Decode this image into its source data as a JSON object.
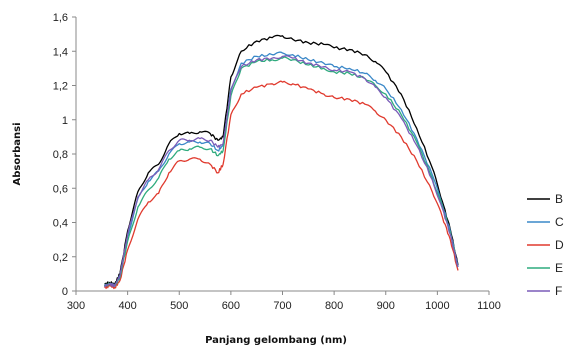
{
  "chart_data": {
    "type": "line",
    "title": "",
    "xlabel": "Panjang gelombang (nm)",
    "ylabel": "Absorbansi",
    "xlim": [
      300,
      1100
    ],
    "ylim": [
      0,
      1.6
    ],
    "x_ticks": [
      "300",
      "400",
      "500",
      "600",
      "700",
      "800",
      "900",
      "1000",
      "1100"
    ],
    "y_ticks": [
      "0",
      "0,2",
      "0,4",
      "0,6",
      "0,8",
      "1",
      "1,2",
      "1,4",
      "1,6"
    ],
    "grid": false,
    "legend_position": "right",
    "series": [
      {
        "name": "B",
        "color": "#000000",
        "points": [
          [
            355,
            0.04
          ],
          [
            365,
            0.05
          ],
          [
            375,
            0.04
          ],
          [
            385,
            0.1
          ],
          [
            400,
            0.35
          ],
          [
            420,
            0.58
          ],
          [
            440,
            0.69
          ],
          [
            460,
            0.74
          ],
          [
            480,
            0.86
          ],
          [
            500,
            0.92
          ],
          [
            520,
            0.92
          ],
          [
            540,
            0.93
          ],
          [
            560,
            0.92
          ],
          [
            575,
            0.88
          ],
          [
            585,
            0.9
          ],
          [
            600,
            1.25
          ],
          [
            620,
            1.4
          ],
          [
            650,
            1.46
          ],
          [
            680,
            1.48
          ],
          [
            700,
            1.49
          ],
          [
            720,
            1.47
          ],
          [
            750,
            1.45
          ],
          [
            780,
            1.44
          ],
          [
            800,
            1.42
          ],
          [
            830,
            1.41
          ],
          [
            860,
            1.38
          ],
          [
            880,
            1.34
          ],
          [
            900,
            1.28
          ],
          [
            930,
            1.15
          ],
          [
            960,
            0.95
          ],
          [
            990,
            0.72
          ],
          [
            1010,
            0.52
          ],
          [
            1025,
            0.36
          ],
          [
            1040,
            0.15
          ]
        ]
      },
      {
        "name": "C",
        "color": "#3a88c8",
        "points": [
          [
            355,
            0.03
          ],
          [
            365,
            0.04
          ],
          [
            375,
            0.03
          ],
          [
            385,
            0.09
          ],
          [
            400,
            0.32
          ],
          [
            420,
            0.54
          ],
          [
            440,
            0.64
          ],
          [
            460,
            0.7
          ],
          [
            480,
            0.8
          ],
          [
            500,
            0.86
          ],
          [
            520,
            0.87
          ],
          [
            540,
            0.87
          ],
          [
            560,
            0.86
          ],
          [
            575,
            0.82
          ],
          [
            585,
            0.85
          ],
          [
            600,
            1.18
          ],
          [
            620,
            1.33
          ],
          [
            650,
            1.37
          ],
          [
            680,
            1.38
          ],
          [
            700,
            1.39
          ],
          [
            720,
            1.38
          ],
          [
            750,
            1.35
          ],
          [
            780,
            1.33
          ],
          [
            800,
            1.31
          ],
          [
            830,
            1.3
          ],
          [
            860,
            1.27
          ],
          [
            880,
            1.23
          ],
          [
            900,
            1.18
          ],
          [
            930,
            1.06
          ],
          [
            960,
            0.89
          ],
          [
            990,
            0.68
          ],
          [
            1010,
            0.5
          ],
          [
            1025,
            0.35
          ],
          [
            1040,
            0.14
          ]
        ]
      },
      {
        "name": "D",
        "color": "#e03a2e",
        "points": [
          [
            355,
            0.02
          ],
          [
            365,
            0.03
          ],
          [
            375,
            0.02
          ],
          [
            385,
            0.06
          ],
          [
            400,
            0.24
          ],
          [
            420,
            0.42
          ],
          [
            440,
            0.52
          ],
          [
            460,
            0.57
          ],
          [
            480,
            0.69
          ],
          [
            500,
            0.76
          ],
          [
            520,
            0.77
          ],
          [
            540,
            0.77
          ],
          [
            560,
            0.74
          ],
          [
            575,
            0.69
          ],
          [
            585,
            0.74
          ],
          [
            600,
            1.03
          ],
          [
            620,
            1.15
          ],
          [
            650,
            1.19
          ],
          [
            680,
            1.21
          ],
          [
            700,
            1.22
          ],
          [
            720,
            1.21
          ],
          [
            750,
            1.18
          ],
          [
            780,
            1.15
          ],
          [
            800,
            1.13
          ],
          [
            830,
            1.12
          ],
          [
            860,
            1.09
          ],
          [
            880,
            1.05
          ],
          [
            900,
            1.0
          ],
          [
            930,
            0.9
          ],
          [
            960,
            0.76
          ],
          [
            990,
            0.58
          ],
          [
            1010,
            0.43
          ],
          [
            1025,
            0.3
          ],
          [
            1040,
            0.12
          ]
        ]
      },
      {
        "name": "E",
        "color": "#2fab7e",
        "points": [
          [
            355,
            0.03
          ],
          [
            365,
            0.04
          ],
          [
            375,
            0.03
          ],
          [
            385,
            0.08
          ],
          [
            400,
            0.29
          ],
          [
            420,
            0.49
          ],
          [
            440,
            0.59
          ],
          [
            460,
            0.66
          ],
          [
            480,
            0.77
          ],
          [
            500,
            0.82
          ],
          [
            520,
            0.83
          ],
          [
            540,
            0.84
          ],
          [
            560,
            0.83
          ],
          [
            575,
            0.79
          ],
          [
            585,
            0.82
          ],
          [
            600,
            1.14
          ],
          [
            620,
            1.3
          ],
          [
            650,
            1.34
          ],
          [
            680,
            1.35
          ],
          [
            700,
            1.36
          ],
          [
            720,
            1.35
          ],
          [
            750,
            1.32
          ],
          [
            780,
            1.3
          ],
          [
            800,
            1.28
          ],
          [
            830,
            1.27
          ],
          [
            860,
            1.24
          ],
          [
            880,
            1.2
          ],
          [
            900,
            1.15
          ],
          [
            930,
            1.03
          ],
          [
            960,
            0.87
          ],
          [
            990,
            0.66
          ],
          [
            1010,
            0.49
          ],
          [
            1025,
            0.34
          ],
          [
            1040,
            0.14
          ]
        ]
      },
      {
        "name": "F",
        "color": "#7a5cb8",
        "points": [
          [
            355,
            0.03
          ],
          [
            365,
            0.04
          ],
          [
            375,
            0.03
          ],
          [
            385,
            0.09
          ],
          [
            400,
            0.33
          ],
          [
            420,
            0.55
          ],
          [
            440,
            0.65
          ],
          [
            460,
            0.71
          ],
          [
            480,
            0.82
          ],
          [
            500,
            0.88
          ],
          [
            520,
            0.88
          ],
          [
            540,
            0.89
          ],
          [
            560,
            0.88
          ],
          [
            575,
            0.84
          ],
          [
            585,
            0.86
          ],
          [
            600,
            1.17
          ],
          [
            620,
            1.31
          ],
          [
            650,
            1.35
          ],
          [
            680,
            1.36
          ],
          [
            700,
            1.37
          ],
          [
            720,
            1.36
          ],
          [
            750,
            1.33
          ],
          [
            780,
            1.31
          ],
          [
            800,
            1.29
          ],
          [
            830,
            1.28
          ],
          [
            860,
            1.24
          ],
          [
            880,
            1.19
          ],
          [
            900,
            1.13
          ],
          [
            930,
            1.01
          ],
          [
            960,
            0.85
          ],
          [
            990,
            0.65
          ],
          [
            1010,
            0.48
          ],
          [
            1025,
            0.33
          ],
          [
            1040,
            0.14
          ]
        ]
      }
    ]
  }
}
